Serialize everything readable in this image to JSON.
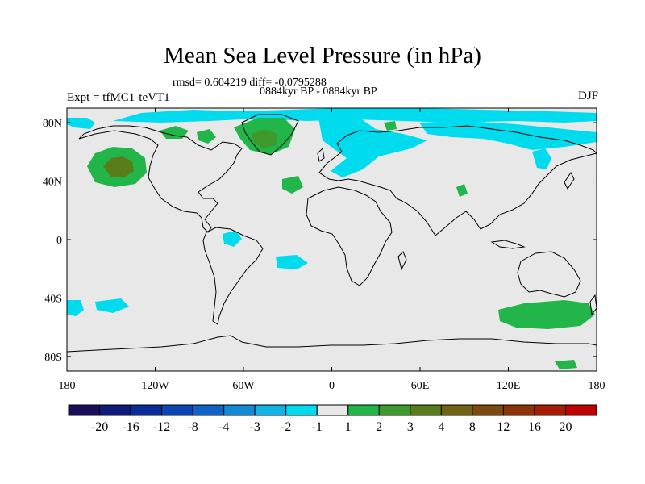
{
  "title": "Mean Sea Level Pressure (in hPa)",
  "stats_line": "rmsd= 0.604219 diff= -0.0795288",
  "period_line": "0884kyr BP - 0884kyr BP",
  "experiment_label": "Expt = tfMC1-teVT1",
  "season_label": "DJF",
  "map": {
    "lon_range": [
      -180,
      180
    ],
    "lat_range": [
      -90,
      90
    ],
    "x_tick_labels": [
      {
        "lon": -180,
        "label": "180"
      },
      {
        "lon": -120,
        "label": "120W"
      },
      {
        "lon": -60,
        "label": "60W"
      },
      {
        "lon": 0,
        "label": "0"
      },
      {
        "lon": 60,
        "label": "60E"
      },
      {
        "lon": 120,
        "label": "120E"
      },
      {
        "lon": 180,
        "label": "180"
      }
    ],
    "y_tick_labels": [
      {
        "lat": 80,
        "label": "80N"
      },
      {
        "lat": 40,
        "label": "40N"
      },
      {
        "lat": 0,
        "label": "0"
      },
      {
        "lat": -40,
        "label": "40S"
      },
      {
        "lat": -80,
        "label": "80S"
      }
    ],
    "background_color": "#e8e8e8"
  },
  "colorbar": {
    "colors": [
      "#1a0e5a",
      "#0d1a7a",
      "#0a2b9a",
      "#0c46b4",
      "#0f63c6",
      "#1289d6",
      "#10b3e6",
      "#00dcee",
      "#e8e8e8",
      "#21b54a",
      "#3e9a2c",
      "#5a7d1c",
      "#6f6414",
      "#7d4a0c",
      "#8c3308",
      "#a61c04",
      "#c00000"
    ],
    "labels": [
      "-20",
      "-16",
      "-12",
      "-8",
      "-4",
      "-3",
      "-2",
      "-1",
      "1",
      "2",
      "3",
      "4",
      "8",
      "12",
      "16",
      "20"
    ]
  }
}
